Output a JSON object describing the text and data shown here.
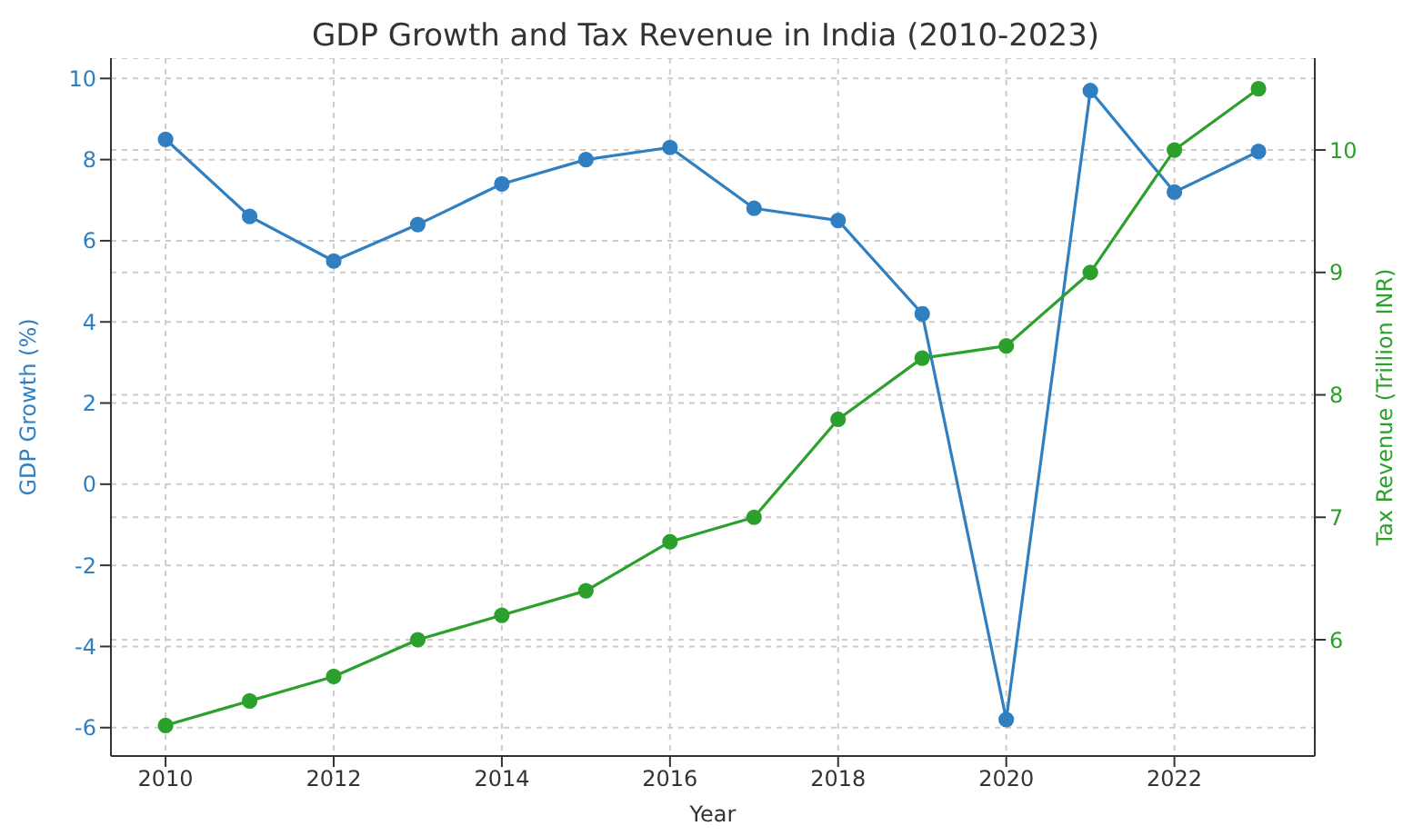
{
  "chart_data": {
    "type": "line",
    "title": "GDP Growth and Tax Revenue in India (2010-2023)",
    "xlabel": "Year",
    "ylabel": "GDP Growth (%)",
    "y2label": "Tax Revenue (Trillion INR)",
    "x": [
      2010,
      2011,
      2012,
      2013,
      2014,
      2015,
      2016,
      2017,
      2018,
      2019,
      2020,
      2021,
      2022,
      2023
    ],
    "series": [
      {
        "color": "#2f7fc1",
        "values": [
          8.5,
          6.6,
          5.5,
          6.4,
          7.4,
          8.0,
          8.3,
          6.8,
          6.5,
          4.2,
          -5.8,
          9.7,
          7.2,
          8.2
        ]
      },
      {
        "color": "#2ca02c",
        "axis": "y2",
        "values": [
          5.3,
          5.5,
          5.7,
          6.0,
          6.2,
          6.4,
          6.8,
          7.0,
          7.8,
          8.3,
          8.4,
          9.0,
          10.0,
          10.5
        ]
      }
    ],
    "xlim": [
      2009.35,
      2023.67
    ],
    "xticks": [
      2010,
      2012,
      2014,
      2016,
      2018,
      2020,
      2022
    ],
    "ylim": [
      -6.7,
      10.5
    ],
    "yticks": [
      -6,
      -4,
      -2,
      0,
      2,
      4,
      6,
      8,
      10
    ],
    "y2lim": [
      5.05,
      10.75
    ],
    "y2ticks": [
      6,
      7,
      8,
      9,
      10
    ],
    "grid": true,
    "marker": "circle",
    "line_style": "solid",
    "legend": false
  }
}
